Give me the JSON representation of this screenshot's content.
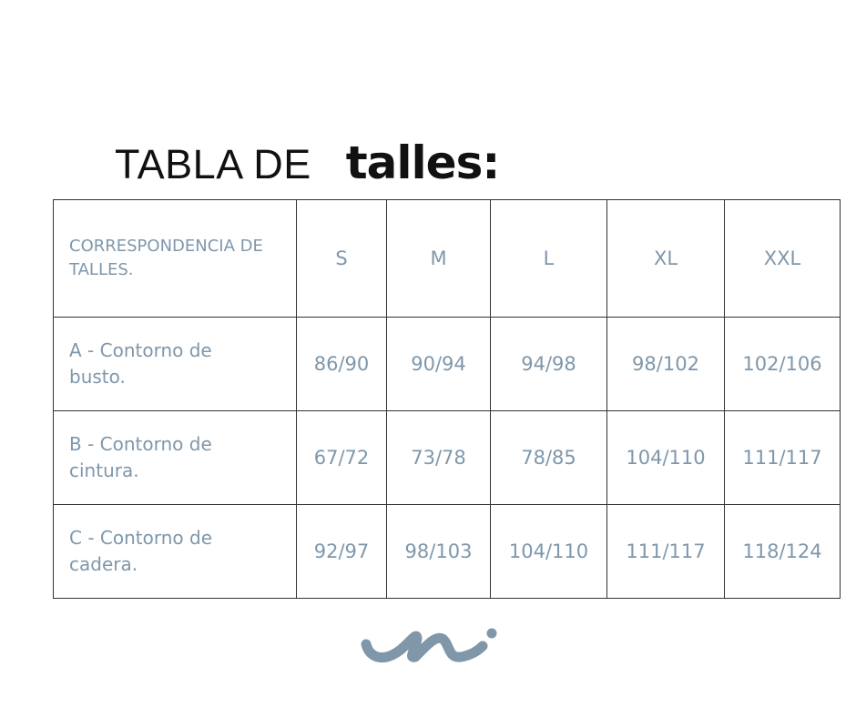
{
  "title": {
    "prefix": "TABLA DE",
    "emphasis": "talles:"
  },
  "table": {
    "corner_label": "CORRESPONDENCIA DE TALLES.",
    "sizes": [
      "S",
      "M",
      "L",
      "XL",
      "XXL"
    ],
    "rows": [
      {
        "label": "A - Contorno de busto.",
        "values": [
          "86/90",
          "90/94",
          "94/98",
          "98/102",
          "102/106"
        ]
      },
      {
        "label": "B - Contorno de cintura.",
        "values": [
          "67/72",
          "73/78",
          "78/85",
          "104/110",
          "111/117"
        ]
      },
      {
        "label": "C - Contorno de cadera.",
        "values": [
          "92/97",
          "98/103",
          "104/110",
          "111/117",
          "118/124"
        ]
      }
    ]
  },
  "colors": {
    "text_accent": "#7f97ab",
    "logo": "#8097aa",
    "border": "#333333"
  },
  "logo": {
    "icon": "brand-squiggle-logo"
  }
}
